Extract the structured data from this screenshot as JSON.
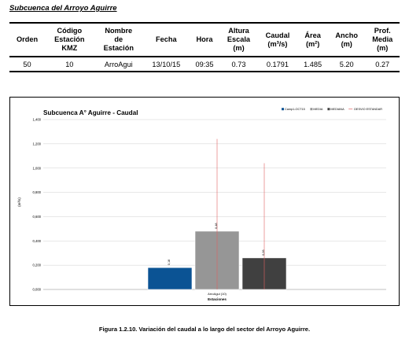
{
  "heading": "Subcuenca del Arroyo Aguirre",
  "table": {
    "headers": [
      [
        "Orden"
      ],
      [
        "Código",
        "Estación",
        "KMZ"
      ],
      [
        "Nombre",
        "de",
        "Estación"
      ],
      [
        "Fecha"
      ],
      [
        "Hora"
      ],
      [
        "Altura",
        "Escala",
        "(m)"
      ],
      [
        "Caudal",
        "(m³/s)"
      ],
      [
        "Área",
        "(m²)"
      ],
      [
        "Ancho",
        "(m)"
      ],
      [
        "Prof.",
        "Media",
        "(m)"
      ]
    ],
    "rows": [
      [
        "50",
        "10",
        "ArroAgui",
        "13/10/15",
        "09:35",
        "0.73",
        "0.1791",
        "1.485",
        "5.20",
        "0.27"
      ]
    ]
  },
  "chart_data": {
    "type": "bar",
    "title": "Subcuenca A° Aguirre - Caudal",
    "xlabel": "Estaciones",
    "ylabel": "(m³/s)",
    "categories": [
      "ArroAgui (10)"
    ],
    "series": [
      {
        "name": "Camp1-OCT15",
        "values": [
          0.18
        ],
        "label": "0,18",
        "color": "#0b5394"
      },
      {
        "name": "MEDIA",
        "values": [
          0.48
        ],
        "label": "0,48",
        "color": "#969696",
        "error": 0.76
      },
      {
        "name": "MEDIANA",
        "values": [
          0.26
        ],
        "label": "0,26",
        "color": "#404040",
        "error": 0.78
      }
    ],
    "error_series": "DESVIO ESTANDAR",
    "error_color": "#e06060",
    "ylim": [
      0,
      1.4
    ],
    "yticks": [
      "0,000",
      "0,200",
      "0,400",
      "0,600",
      "0,800",
      "1,000",
      "1,200",
      "1,400"
    ],
    "grid": true,
    "legend": "top-right"
  },
  "caption": "Figura 1.2.10. Variación del caudal a lo largo del sector del Arroyo Aguirre."
}
